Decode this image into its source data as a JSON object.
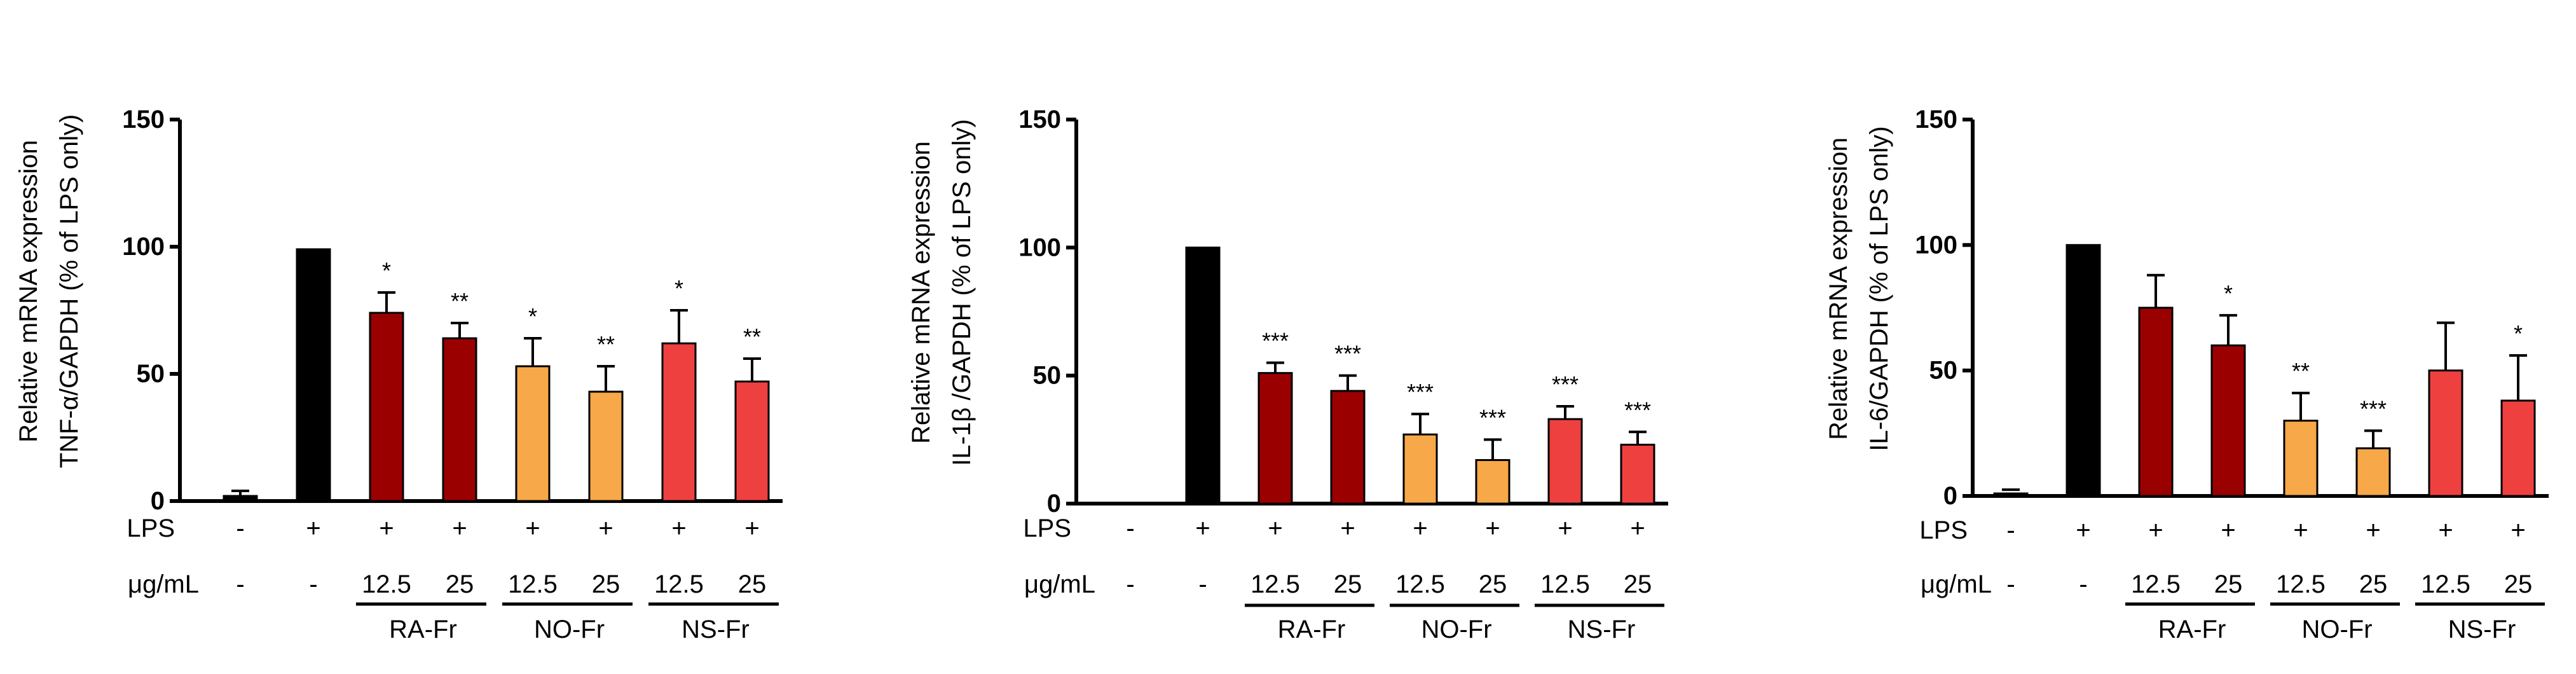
{
  "colors": {
    "lps_only": "#000000",
    "RA-Fr": "#9b0000",
    "NO-Fr": "#f7a848",
    "NS-Fr": "#ef4040",
    "untreated": "#000000"
  },
  "row_labels": {
    "lps": "LPS",
    "conc": "μg/mL"
  },
  "chart_data": [
    {
      "type": "bar",
      "ylabel_line1": "Relative mRNA expression",
      "ylabel_line2": "TNF-α/GAPDH (% of LPS only)",
      "ylim": [
        0,
        150
      ],
      "yticks": [
        0,
        50,
        100,
        150
      ],
      "lps": [
        "-",
        "+",
        "+",
        "+",
        "+",
        "+",
        "+",
        "+"
      ],
      "conc": [
        "-",
        "-",
        "12.5",
        "25",
        "12.5",
        "25",
        "12.5",
        "25"
      ],
      "values": [
        2,
        99,
        74,
        64,
        53,
        43,
        62,
        47
      ],
      "errors": [
        2,
        0,
        8,
        6,
        11,
        10,
        13,
        9
      ],
      "significance": [
        "",
        "",
        "*",
        "**",
        "*",
        "**",
        "*",
        "**"
      ],
      "groups": [
        "RA-Fr",
        "NO-Fr",
        "NS-Fr"
      ]
    },
    {
      "type": "bar",
      "ylabel_line1": "Relative mRNA expression",
      "ylabel_line2": "IL-1β /GAPDH (% of LPS only)",
      "ylim": [
        0,
        150
      ],
      "yticks": [
        0,
        50,
        100,
        150
      ],
      "lps": [
        "-",
        "+",
        "+",
        "+",
        "+",
        "+",
        "+",
        "+"
      ],
      "conc": [
        "-",
        "-",
        "12.5",
        "25",
        "12.5",
        "25",
        "12.5",
        "25"
      ],
      "values": [
        0,
        100,
        51,
        44,
        27,
        17,
        33,
        23
      ],
      "errors": [
        0,
        0,
        4,
        6,
        8,
        8,
        5,
        5
      ],
      "significance": [
        "",
        "",
        "***",
        "***",
        "***",
        "***",
        "***",
        "***"
      ],
      "groups": [
        "RA-Fr",
        "NO-Fr",
        "NS-Fr"
      ]
    },
    {
      "type": "bar",
      "ylabel_line1": "Relative mRNA expression",
      "ylabel_line2": "IL-6/GAPDH (% of LPS only)",
      "ylim": [
        0,
        150
      ],
      "yticks": [
        0,
        50,
        100,
        150
      ],
      "lps": [
        "-",
        "+",
        "+",
        "+",
        "+",
        "+",
        "+",
        "+"
      ],
      "conc": [
        "-",
        "-",
        "12.5",
        "25",
        "12.5",
        "25",
        "12.5",
        "25"
      ],
      "values": [
        1,
        100,
        75,
        60,
        30,
        19,
        50,
        38
      ],
      "errors": [
        0,
        0,
        13,
        12,
        11,
        7,
        19,
        18
      ],
      "significance": [
        "",
        "",
        "",
        "*",
        "**",
        "***",
        "",
        "*"
      ],
      "groups": [
        "RA-Fr",
        "NO-Fr",
        "NS-Fr"
      ]
    }
  ]
}
